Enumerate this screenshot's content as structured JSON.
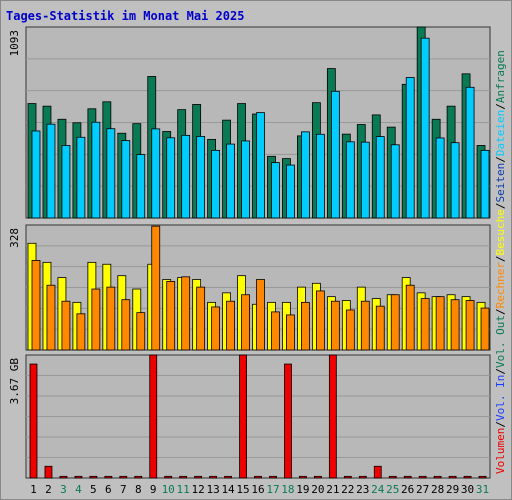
{
  "colors": {
    "background": "#c0c0c0",
    "plot_bg": "#b8b8b8",
    "title": "#0000cc",
    "anfragen": "#0a7a55",
    "dateien": "#00ccff",
    "seiten": "#0a3aa8",
    "besuche": "#ffff00",
    "rechner": "#ff8800",
    "vol_in": "#1a3fff",
    "vol_out": "#0a7a55",
    "volumen": "#ee0000"
  },
  "chart_data": {
    "title": "Tages-Statistik im Monat Mai 2025",
    "type": "bar",
    "categories": [
      "1",
      "2",
      "3",
      "4",
      "5",
      "6",
      "7",
      "8",
      "9",
      "10",
      "11",
      "12",
      "13",
      "14",
      "15",
      "16",
      "17",
      "18",
      "19",
      "20",
      "21",
      "22",
      "23",
      "24",
      "25",
      "26",
      "27",
      "28",
      "29",
      "30",
      "31"
    ],
    "weekend_days": [
      "3",
      "4",
      "10",
      "11",
      "17",
      "18",
      "24",
      "25",
      "31"
    ],
    "panels": [
      {
        "ylabel_max": "1093",
        "ymax": 1093,
        "series": [
          {
            "name": "Anfragen",
            "values": [
              655,
              640,
              565,
              545,
              625,
              665,
              485,
              540,
              810,
              495,
              620,
              650,
              450,
              560,
              655,
              595,
              353,
              340,
              470,
              660,
              855,
              480,
              535,
              590,
              520,
              765,
              1093,
              565,
              640,
              825,
              415
            ]
          },
          {
            "name": "Dateien",
            "values": [
              498,
              537,
              415,
              462,
              548,
              511,
              443,
              363,
              510,
              459,
              473,
              467,
              387,
              423,
              441,
              603,
              317,
              303,
              493,
              479,
              725,
              436,
              434,
              466,
              419,
              804,
              1029,
              458,
              431,
              748,
              387
            ]
          },
          {
            "name": "Seiten",
            "values": [
              0,
              0,
              0,
              0,
              0,
              0,
              0,
              0,
              0,
              0,
              0,
              0,
              0,
              0,
              0,
              0,
              0,
              0,
              0,
              0,
              0,
              0,
              0,
              0,
              0,
              0,
              0,
              0,
              0,
              0,
              0
            ]
          }
        ]
      },
      {
        "ylabel_max": "328",
        "ymax": 328,
        "series": [
          {
            "name": "Besuche",
            "values": [
              280,
              230,
              190,
              125,
              230,
              225,
              195,
              160,
              225,
              185,
              190,
              185,
              125,
              150,
              195,
              120,
              125,
              125,
              165,
              175,
              140,
              130,
              165,
              135,
              145,
              190,
              150,
              140,
              145,
              140,
              125
            ]
          },
          {
            "name": "Rechner",
            "values": [
              235,
              170,
              128,
              95,
              160,
              165,
              132,
              98,
              325,
              180,
              192,
              165,
              113,
              128,
              145,
              185,
              100,
              92,
              125,
              155,
              128,
              105,
              128,
              115,
              145,
              170,
              135,
              140,
              132,
              130,
              110
            ]
          }
        ]
      },
      {
        "ylabel_max": "3.67 GB",
        "ymax": 3.67,
        "series": [
          {
            "name": "Volumen",
            "values": [
              3.4,
              0.35,
              0.05,
              0.05,
              0.05,
              0.05,
              0.05,
              0.05,
              3.67,
              0.05,
              0.05,
              0.05,
              0.05,
              0.05,
              3.67,
              0.05,
              0.05,
              3.4,
              0.05,
              0.05,
              3.67,
              0.05,
              0.05,
              0.35,
              0.05,
              0.05,
              0.05,
              0.05,
              0.05,
              0.05,
              0.05
            ]
          }
        ]
      }
    ],
    "right_labels": [
      "Anfragen",
      "Dateien",
      "Seiten",
      "Besuche",
      "Rechner",
      "Vol. Out",
      "Vol. In",
      "Volumen"
    ],
    "separator": "/"
  }
}
